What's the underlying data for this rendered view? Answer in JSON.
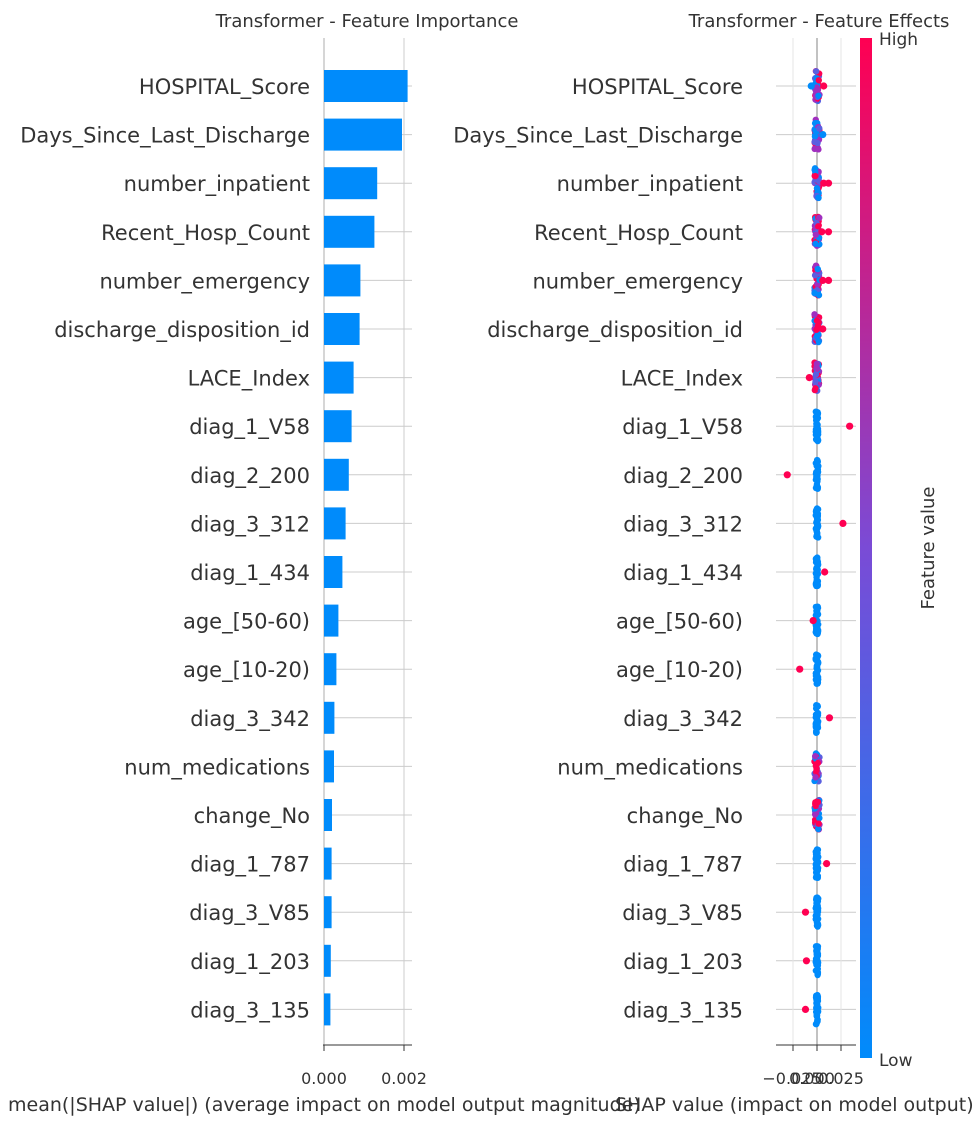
{
  "chart_data": [
    {
      "type": "bar",
      "orientation": "horizontal",
      "title": "Transformer - Feature Importance",
      "xlabel": "mean(|SHAP value|) (average impact on model output magnitude)",
      "xlim": [
        0,
        0.0022
      ],
      "xticks": [
        0.0,
        0.002
      ],
      "xtick_labels": [
        "0.000",
        "0.002"
      ],
      "grid": true,
      "color": "#008bfb",
      "categories": [
        "HOSPITAL_Score",
        "Days_Since_Last_Discharge",
        "number_inpatient",
        "Recent_Hosp_Count",
        "number_emergency",
        "discharge_disposition_id",
        "LACE_Index",
        "diag_1_V58",
        "diag_2_200",
        "diag_3_312",
        "diag_1_434",
        "age_[50-60)",
        "age_[10-20)",
        "diag_3_342",
        "num_medications",
        "change_No",
        "diag_1_787",
        "diag_3_V85",
        "diag_1_203",
        "diag_3_135"
      ],
      "values": [
        0.00209,
        0.00195,
        0.00133,
        0.00126,
        0.00091,
        0.00089,
        0.00074,
        0.00069,
        0.00062,
        0.00054,
        0.00046,
        0.00036,
        0.00031,
        0.00026,
        0.00025,
        0.0002,
        0.00019,
        0.00019,
        0.00017,
        0.00016
      ]
    },
    {
      "type": "scatter",
      "subtype": "beeswarm",
      "title": "Transformer - Feature Effects",
      "xlabel": "SHAP value (impact on model output)",
      "xtick_labels": [
        "−0.025",
        "0.000",
        "0.025"
      ],
      "colorbar": {
        "label": "Feature value",
        "high": "High",
        "low": "Low",
        "high_color": "#ff0052",
        "low_color": "#008bfb"
      },
      "categories": [
        "HOSPITAL_Score",
        "Days_Since_Last_Discharge",
        "number_inpatient",
        "Recent_Hosp_Count",
        "number_emergency",
        "discharge_disposition_id",
        "LACE_Index",
        "diag_1_V58",
        "diag_2_200",
        "diag_3_312",
        "diag_1_434",
        "age_[50-60)",
        "age_[10-20)",
        "diag_3_342",
        "num_medications",
        "change_No",
        "diag_1_787",
        "diag_3_V85",
        "diag_1_203",
        "diag_3_135"
      ],
      "xlim": [
        -0.03,
        0.04
      ],
      "outliers": [
        {
          "feature": "HOSPITAL_Score",
          "x": 0.007,
          "value": "high"
        },
        {
          "feature": "HOSPITAL_Score",
          "x": -0.006,
          "value": "low"
        },
        {
          "feature": "Days_Since_Last_Discharge",
          "x": 0.006,
          "value": "low"
        },
        {
          "feature": "number_inpatient",
          "x": 0.012,
          "value": "high"
        },
        {
          "feature": "number_inpatient",
          "x": 0.007,
          "value": "high"
        },
        {
          "feature": "Recent_Hosp_Count",
          "x": 0.012,
          "value": "high"
        },
        {
          "feature": "Recent_Hosp_Count",
          "x": 0.005,
          "value": "high"
        },
        {
          "feature": "number_emergency",
          "x": 0.012,
          "value": "high"
        },
        {
          "feature": "number_emergency",
          "x": 0.006,
          "value": "high"
        },
        {
          "feature": "discharge_disposition_id",
          "x": 0.006,
          "value": "high"
        },
        {
          "feature": "LACE_Index",
          "x": -0.008,
          "value": "high"
        },
        {
          "feature": "diag_1_V58",
          "x": 0.034,
          "value": "high"
        },
        {
          "feature": "diag_2_200",
          "x": -0.031,
          "value": "high"
        },
        {
          "feature": "diag_3_312",
          "x": 0.027,
          "value": "high"
        },
        {
          "feature": "diag_1_434",
          "x": 0.008,
          "value": "high"
        },
        {
          "feature": "age_[50-60)",
          "x": -0.004,
          "value": "high"
        },
        {
          "feature": "age_[10-20)",
          "x": -0.018,
          "value": "high"
        },
        {
          "feature": "diag_3_342",
          "x": 0.013,
          "value": "high"
        },
        {
          "feature": "diag_1_787",
          "x": 0.01,
          "value": "high"
        },
        {
          "feature": "diag_3_V85",
          "x": -0.012,
          "value": "high"
        },
        {
          "feature": "diag_1_203",
          "x": -0.011,
          "value": "high"
        },
        {
          "feature": "diag_3_135",
          "x": -0.012,
          "value": "high"
        }
      ]
    }
  ]
}
